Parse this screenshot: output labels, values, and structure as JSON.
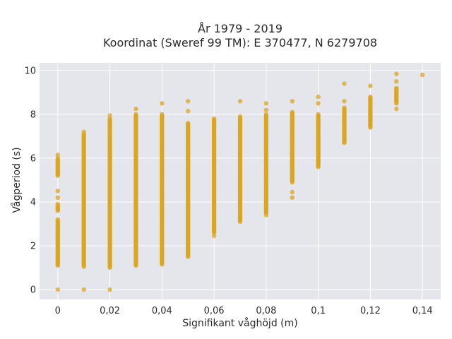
{
  "chart_data": {
    "type": "scatter",
    "title_line1": "År 1979 - 2019",
    "title_line2": "Koordinat (Sweref 99 TM): E 370477, N 6279708",
    "xlabel": "Signifikant våghöjd (m)",
    "ylabel": "Vågperiod (s)",
    "xlim": [
      -0.007,
      0.147
    ],
    "ylim": [
      -0.45,
      10.35
    ],
    "x_ticks": [
      0,
      0.02,
      0.04,
      0.06,
      0.08,
      0.1,
      0.12,
      0.14
    ],
    "x_tick_labels": [
      "0",
      "0,02",
      "0,04",
      "0,06",
      "0,08",
      "0,1",
      "0,12",
      "0,14"
    ],
    "y_ticks": [
      0,
      2,
      4,
      6,
      8,
      10
    ],
    "y_tick_labels": [
      "0",
      "2",
      "4",
      "6",
      "8",
      "10"
    ],
    "grid": true,
    "plot_background": "#e5e5ec",
    "grid_color": "#ffffff",
    "marker_color": "#daa520",
    "columns": [
      {
        "x": 0,
        "ranges": [
          [
            1.1,
            3.2
          ],
          [
            3.6,
            3.9
          ],
          [
            5.2,
            6.0
          ]
        ],
        "points": [
          4.5,
          4.2,
          6.15,
          0.0
        ]
      },
      {
        "x": 0.01,
        "ranges": [
          [
            1.05,
            7.1
          ]
        ],
        "points": [
          7.2,
          0.0
        ]
      },
      {
        "x": 0.02,
        "ranges": [
          [
            1.0,
            7.8
          ]
        ],
        "points": [
          7.95,
          0.0
        ]
      },
      {
        "x": 0.03,
        "ranges": [
          [
            1.1,
            8.0
          ]
        ],
        "points": [
          8.25
        ]
      },
      {
        "x": 0.04,
        "ranges": [
          [
            1.15,
            8.0
          ]
        ],
        "points": [
          8.5
        ]
      },
      {
        "x": 0.05,
        "ranges": [
          [
            1.5,
            7.6
          ]
        ],
        "points": [
          8.15,
          8.6
        ]
      },
      {
        "x": 0.06,
        "ranges": [
          [
            2.6,
            7.8
          ]
        ],
        "points": [
          2.45
        ]
      },
      {
        "x": 0.07,
        "ranges": [
          [
            3.1,
            7.9
          ]
        ],
        "points": [
          8.6
        ]
      },
      {
        "x": 0.08,
        "ranges": [
          [
            3.5,
            8.0
          ]
        ],
        "points": [
          3.4,
          8.2,
          8.5
        ]
      },
      {
        "x": 0.09,
        "ranges": [
          [
            4.9,
            8.1
          ]
        ],
        "points": [
          4.2,
          4.45,
          8.6
        ]
      },
      {
        "x": 0.1,
        "ranges": [
          [
            5.6,
            8.0
          ]
        ],
        "points": [
          8.5,
          8.8
        ]
      },
      {
        "x": 0.11,
        "ranges": [
          [
            6.7,
            8.3
          ]
        ],
        "points": [
          8.6,
          9.4
        ]
      },
      {
        "x": 0.12,
        "ranges": [
          [
            7.4,
            8.8
          ]
        ],
        "points": [
          9.3
        ]
      },
      {
        "x": 0.13,
        "ranges": [
          [
            8.5,
            9.2
          ]
        ],
        "points": [
          8.25,
          9.5,
          9.85
        ]
      },
      {
        "x": 0.14,
        "ranges": [],
        "points": [
          9.8
        ]
      }
    ]
  }
}
